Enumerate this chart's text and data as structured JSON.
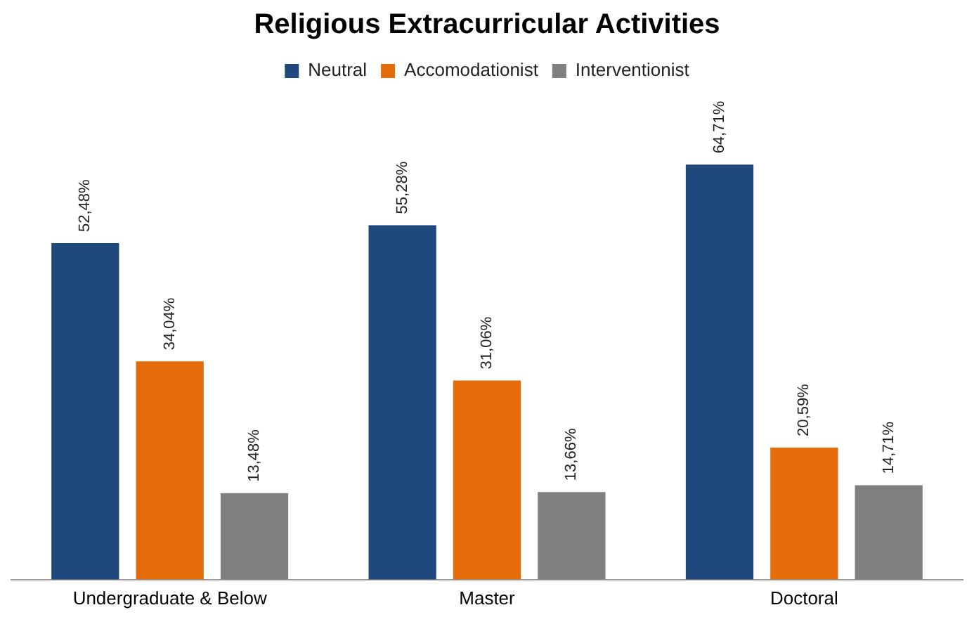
{
  "chart_data": {
    "type": "bar",
    "title": "Religious Extracurricular Activities",
    "categories": [
      "Undergraduate & Below",
      "Master",
      "Doctoral"
    ],
    "series": [
      {
        "name": "Neutral",
        "color": "#1f497d",
        "values": [
          52.48,
          55.28,
          64.71
        ],
        "value_labels": [
          "52,48%",
          "55,28%",
          "64,71%"
        ]
      },
      {
        "name": "Accomodationist",
        "color": "#e46c0a",
        "values": [
          34.04,
          31.06,
          20.59
        ],
        "value_labels": [
          "34,04%",
          "31,06%",
          "20,59%"
        ]
      },
      {
        "name": "Interventionist",
        "color": "#808080",
        "values": [
          13.48,
          13.66,
          14.71
        ],
        "value_labels": [
          "13,48%",
          "13,66%",
          "14,71%"
        ]
      }
    ],
    "grid": false,
    "legend": "top",
    "tick_labels": "x"
  }
}
